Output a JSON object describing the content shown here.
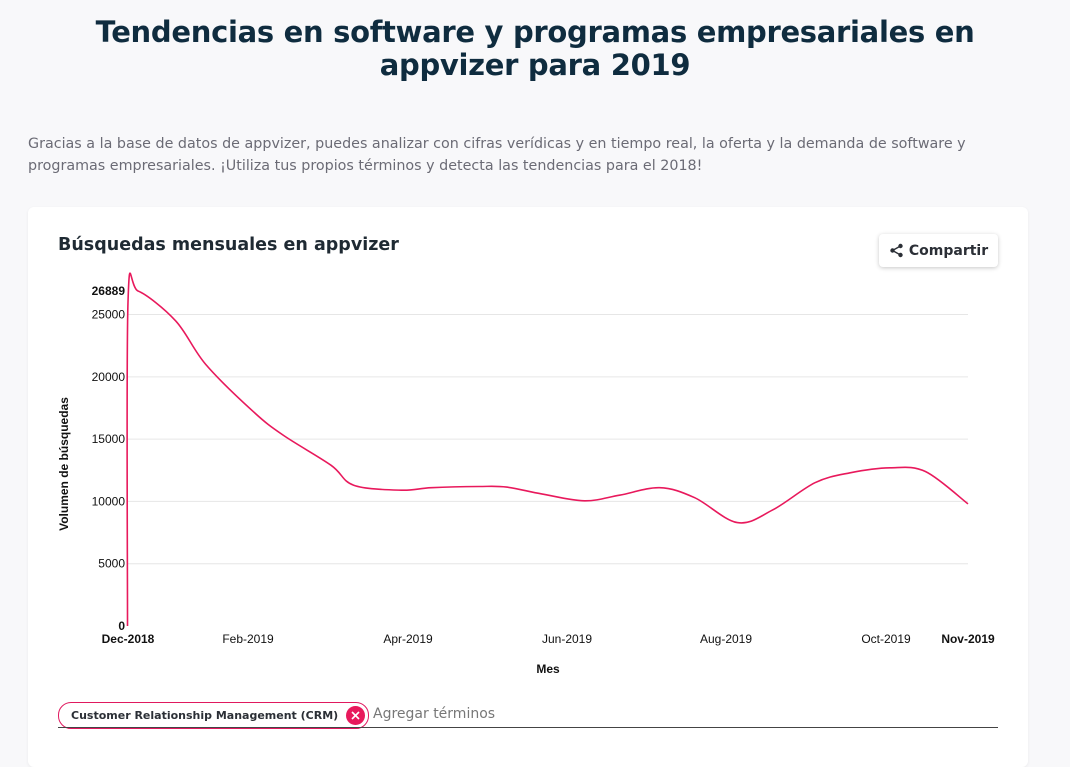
{
  "page": {
    "title": "Tendencias en software y programas empresariales en appvizer para 2019",
    "intro": "Gracias a la base de datos de appvizer, puedes analizar con cifras verídicas y en tiempo real, la oferta y la demanda de software y programas empresariales. ¡Utiliza tus propios términos y detecta las tendencias para el 2018!"
  },
  "card": {
    "title": "Búsquedas mensuales en appvizer",
    "share_label": "Compartir",
    "share_icon": "share-icon"
  },
  "terms": {
    "chips": [
      {
        "label": "Customer Relationship Management (CRM)"
      }
    ],
    "placeholder": "Agregar términos",
    "remove_icon": "close-icon"
  },
  "chart_data": {
    "type": "line",
    "xlabel": "Mes",
    "ylabel": "Volumen de búsquedas",
    "ylim": [
      0,
      26889
    ],
    "yticks": [
      0,
      5000,
      10000,
      15000,
      20000,
      25000,
      26889
    ],
    "xticks": [
      "Dec-2018",
      "Feb-2019",
      "Apr-2019",
      "Jun-2019",
      "Aug-2019",
      "Oct-2019",
      "Nov-2019"
    ],
    "x": [
      "2018-11-30",
      "2018-12-01",
      "2018-12-05",
      "2018-12-20",
      "2019-01-01",
      "2019-01-20",
      "2019-02-01",
      "2019-02-20",
      "2019-03-01",
      "2019-03-20",
      "2019-04-01",
      "2019-04-20",
      "2019-05-01",
      "2019-05-15",
      "2019-06-01",
      "2019-06-15",
      "2019-07-01",
      "2019-07-15",
      "2019-08-01",
      "2019-08-15",
      "2019-09-01",
      "2019-09-15",
      "2019-10-01",
      "2019-10-15",
      "2019-11-01"
    ],
    "series": [
      {
        "color": "#e8195c",
        "values": [
          0,
          26000,
          26889,
          24500,
          21000,
          17200,
          15300,
          12900,
          11300,
          10900,
          11100,
          11200,
          11150,
          10600,
          10050,
          10500,
          11100,
          10300,
          8300,
          9300,
          11500,
          12300,
          12700,
          12400,
          9800
        ]
      }
    ],
    "grid": true,
    "legend": "none"
  }
}
